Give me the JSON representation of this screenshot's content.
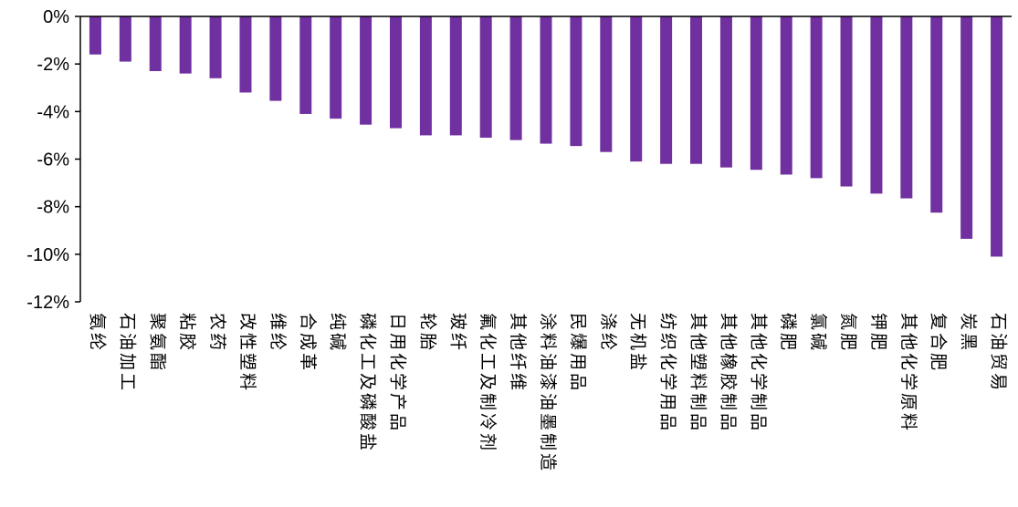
{
  "chart_data": {
    "type": "bar",
    "title": "",
    "xlabel": "",
    "ylabel": "",
    "ylim": [
      -12,
      0
    ],
    "yticks": [
      "0%",
      "-2%",
      "-4%",
      "-6%",
      "-8%",
      "-10%",
      "-12%"
    ],
    "y_tick_values": [
      0,
      -2,
      -4,
      -6,
      -8,
      -10,
      -12
    ],
    "bar_color": "#7030A0",
    "grid": false,
    "legend": "none",
    "categories": [
      "氨纶",
      "石油加工",
      "聚氨酯",
      "粘胶",
      "农药",
      "改性塑料",
      "维纶",
      "合成革",
      "纯碱",
      "磷化工及磷酸盐",
      "日用化学产品",
      "轮胎",
      "玻纤",
      "氟化工及制冷剂",
      "其他纤维",
      "涂料油漆油墨制造",
      "民爆用品",
      "涤纶",
      "无机盐",
      "纺织化学用品",
      "其他塑料制品",
      "其他橡胶制品",
      "其他化学制品",
      "磷肥",
      "氯碱",
      "氮肥",
      "钾肥",
      "其他化学原料",
      "复合肥",
      "炭黑",
      "石油贸易"
    ],
    "values": [
      -1.6,
      -1.9,
      -2.3,
      -2.4,
      -2.6,
      -3.2,
      -3.55,
      -4.1,
      -4.3,
      -4.55,
      -4.7,
      -5.0,
      -5.0,
      -5.1,
      -5.2,
      -5.35,
      -5.45,
      -5.7,
      -6.1,
      -6.2,
      -6.2,
      -6.35,
      -6.45,
      -6.65,
      -6.8,
      -7.15,
      -7.45,
      -7.65,
      -8.25,
      -9.35,
      -10.1
    ]
  }
}
